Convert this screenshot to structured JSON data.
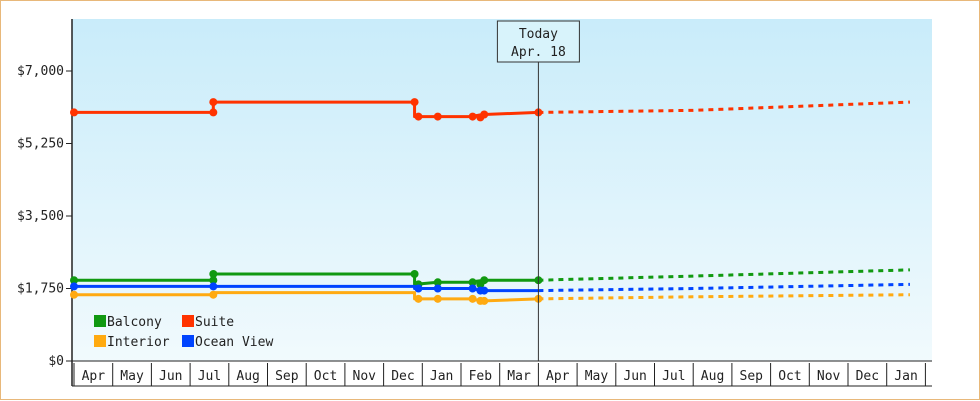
{
  "chart_data": {
    "type": "line",
    "yticks": [
      0,
      1750,
      3500,
      5250,
      7000
    ],
    "ytick_labels": [
      "$0",
      "$1,750",
      "$3,500",
      "$5,250",
      "$7,000"
    ],
    "ylim": [
      0,
      7000
    ],
    "xticks": [
      "Apr",
      "May",
      "Jun",
      "Jul",
      "Aug",
      "Sep",
      "Oct",
      "Nov",
      "Dec",
      "Jan",
      "Feb",
      "Mar",
      "Apr",
      "May",
      "Jun",
      "Jul",
      "Aug",
      "Sep",
      "Oct",
      "Nov",
      "Dec",
      "Jan"
    ],
    "today": {
      "line1": "Today",
      "line2": "Apr. 18",
      "month_index": 12
    },
    "legend_placement": "bottom-left",
    "grid": false,
    "series": [
      {
        "name": "Suite",
        "color": "#ff3300",
        "historical": [
          [
            0,
            6000
          ],
          [
            3.6,
            6000
          ],
          [
            3.6,
            6250
          ],
          [
            8.8,
            6250
          ],
          [
            8.8,
            5900
          ],
          [
            9.4,
            5900
          ],
          [
            10.2,
            5900
          ],
          [
            10.6,
            5950
          ],
          [
            12.0,
            6000
          ]
        ],
        "historical_markers": [
          [
            0,
            6000
          ],
          [
            3.6,
            6000
          ],
          [
            3.6,
            6250
          ],
          [
            8.8,
            6250
          ],
          [
            8.9,
            5900
          ],
          [
            9.4,
            5900
          ],
          [
            10.3,
            5900
          ],
          [
            10.5,
            5880
          ],
          [
            10.6,
            5950
          ],
          [
            12.0,
            6000
          ]
        ],
        "forecast": [
          [
            12.0,
            6000
          ],
          [
            16.0,
            6050
          ],
          [
            21.6,
            6250
          ]
        ]
      },
      {
        "name": "Balcony",
        "color": "#119911",
        "historical": [
          [
            0,
            1950
          ],
          [
            3.6,
            1950
          ],
          [
            3.6,
            2100
          ],
          [
            8.8,
            2100
          ],
          [
            8.8,
            1850
          ],
          [
            9.4,
            1900
          ],
          [
            10.2,
            1900
          ],
          [
            10.6,
            1950
          ],
          [
            12.0,
            1950
          ]
        ],
        "historical_markers": [
          [
            0,
            1950
          ],
          [
            3.6,
            1950
          ],
          [
            3.6,
            2100
          ],
          [
            8.8,
            2100
          ],
          [
            8.9,
            1850
          ],
          [
            9.4,
            1900
          ],
          [
            10.3,
            1900
          ],
          [
            10.5,
            1850
          ],
          [
            10.6,
            1950
          ],
          [
            12.0,
            1950
          ]
        ],
        "forecast": [
          [
            12.0,
            1950
          ],
          [
            16.0,
            2050
          ],
          [
            21.6,
            2200
          ]
        ]
      },
      {
        "name": "Ocean View",
        "color": "#0044ff",
        "historical": [
          [
            0,
            1800
          ],
          [
            3.6,
            1800
          ],
          [
            8.8,
            1800
          ],
          [
            8.8,
            1750
          ],
          [
            9.4,
            1750
          ],
          [
            10.2,
            1750
          ],
          [
            10.6,
            1700
          ],
          [
            12.0,
            1700
          ]
        ],
        "historical_markers": [
          [
            0,
            1800
          ],
          [
            3.6,
            1800
          ],
          [
            8.9,
            1750
          ],
          [
            9.4,
            1750
          ],
          [
            10.3,
            1750
          ],
          [
            10.5,
            1700
          ],
          [
            10.6,
            1700
          ]
        ],
        "forecast": [
          [
            12.0,
            1700
          ],
          [
            16.0,
            1750
          ],
          [
            21.6,
            1850
          ]
        ]
      },
      {
        "name": "Interior",
        "color": "#ffaa11",
        "historical": [
          [
            0,
            1600
          ],
          [
            3.6,
            1600
          ],
          [
            3.6,
            1650
          ],
          [
            8.8,
            1650
          ],
          [
            8.8,
            1500
          ],
          [
            9.4,
            1500
          ],
          [
            10.2,
            1500
          ],
          [
            10.6,
            1450
          ],
          [
            12.0,
            1500
          ]
        ],
        "historical_markers": [
          [
            0,
            1600
          ],
          [
            3.6,
            1600
          ],
          [
            8.9,
            1500
          ],
          [
            9.4,
            1500
          ],
          [
            10.3,
            1500
          ],
          [
            10.5,
            1450
          ],
          [
            10.6,
            1450
          ],
          [
            12.0,
            1500
          ]
        ],
        "forecast": [
          [
            12.0,
            1500
          ],
          [
            16.0,
            1550
          ],
          [
            21.6,
            1600
          ]
        ]
      }
    ],
    "legend": [
      {
        "name": "Balcony",
        "color": "#119911"
      },
      {
        "name": "Suite",
        "color": "#ff3300"
      },
      {
        "name": "Interior",
        "color": "#ffaa11"
      },
      {
        "name": "Ocean View",
        "color": "#0044ff"
      }
    ]
  }
}
